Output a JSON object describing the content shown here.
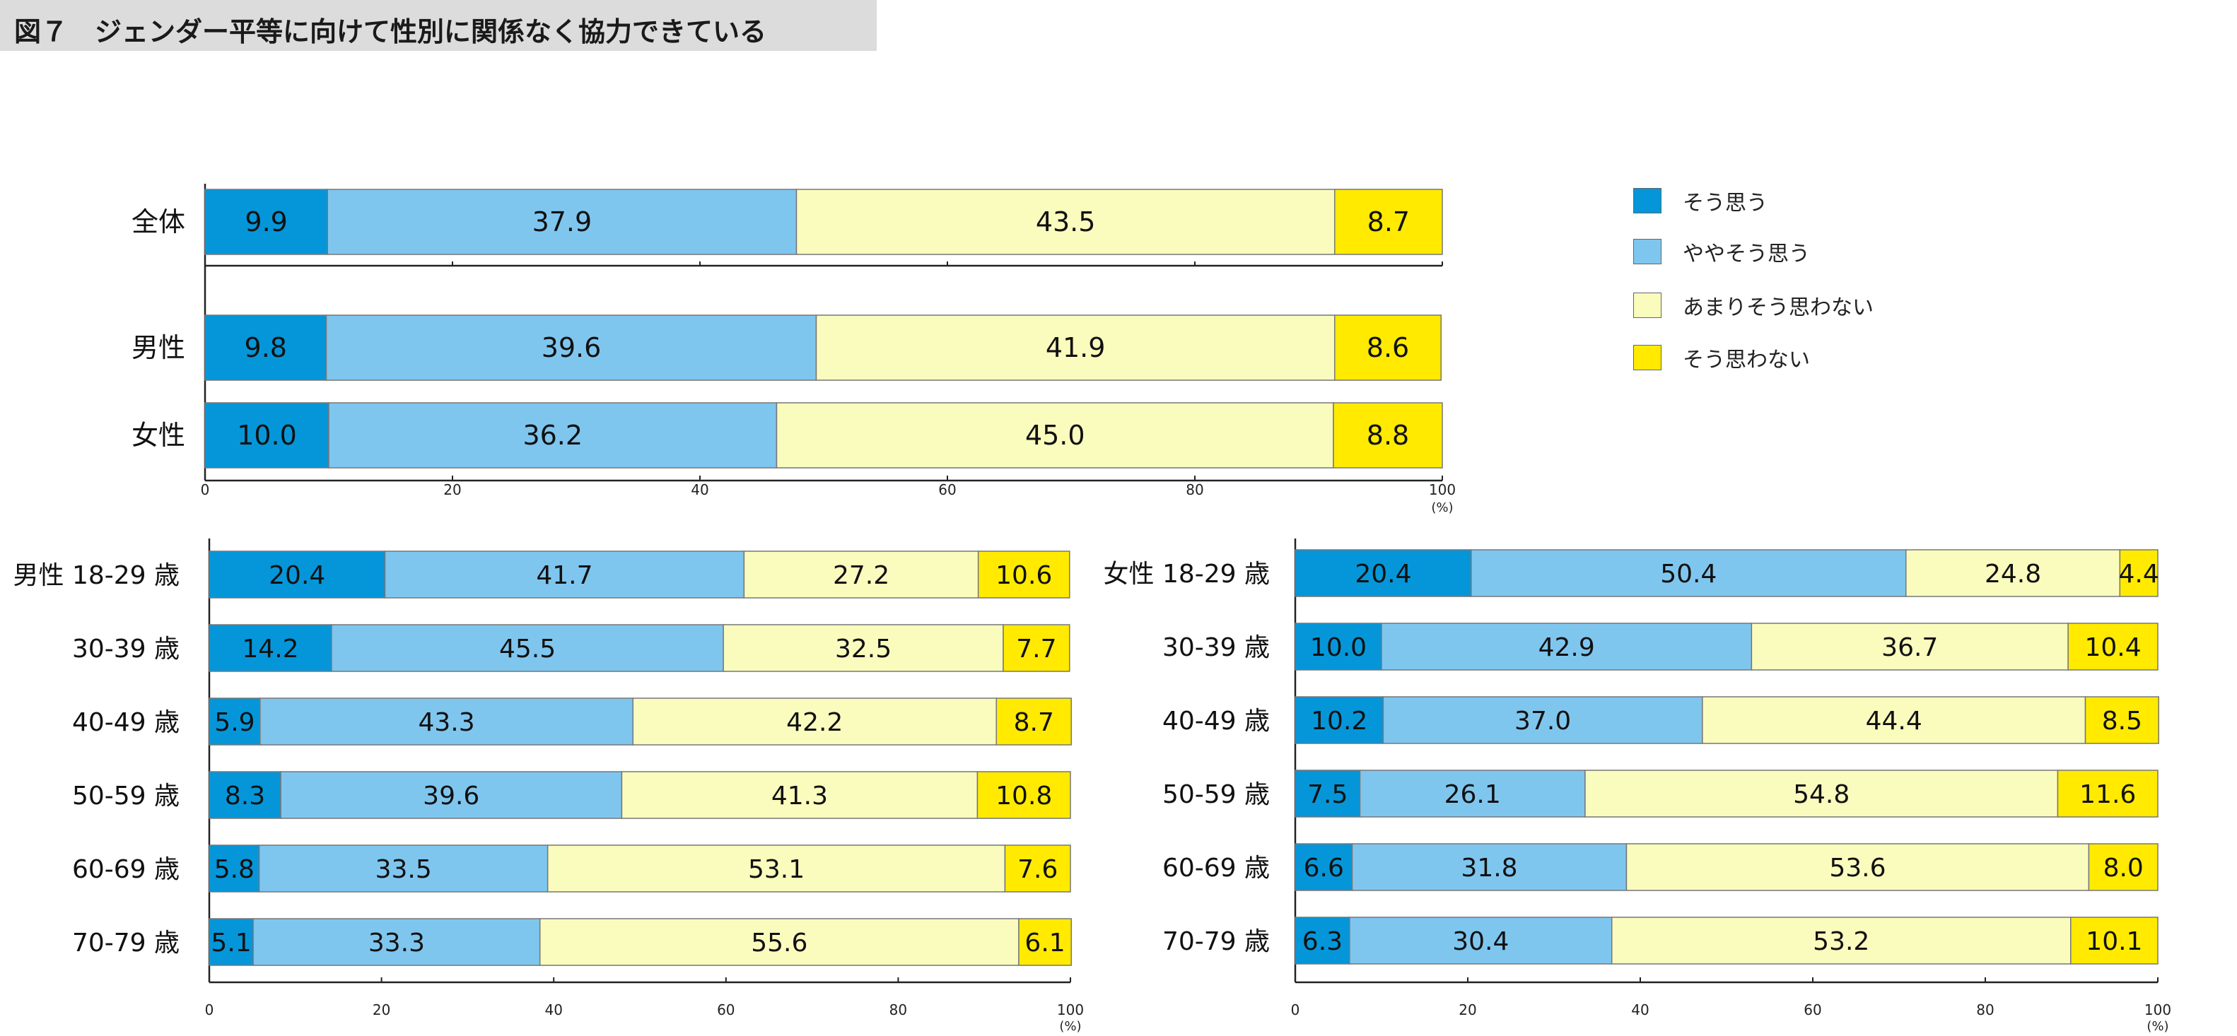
{
  "title": "図７　ジェンダー平等に向けて性別に関係なく協力できている",
  "colors": {
    "c1": "#0596d9",
    "c2": "#7fc6ef",
    "c3": "#fafcbe",
    "c4": "#ffea00"
  },
  "legend": [
    {
      "label": "そう思う",
      "color": "#0596d9"
    },
    {
      "label": "ややそう思う",
      "color": "#7fc6ef"
    },
    {
      "label": "あまりそう思わない",
      "color": "#fafcbe"
    },
    {
      "label": "そう思わない",
      "color": "#ffea00"
    }
  ],
  "chart_data": [
    {
      "type": "bar",
      "orientation": "horizontal-stacked",
      "categories": [
        "全体",
        "男性",
        "女性"
      ],
      "series": [
        {
          "name": "そう思う",
          "values": [
            9.9,
            9.8,
            10.0
          ]
        },
        {
          "name": "ややそう思う",
          "values": [
            37.9,
            39.6,
            36.2
          ]
        },
        {
          "name": "あまりそう思わない",
          "values": [
            43.5,
            41.9,
            45.0
          ]
        },
        {
          "name": "そう思わない",
          "values": [
            8.7,
            8.6,
            8.8
          ]
        }
      ],
      "xlim": [
        0,
        100
      ],
      "xticks": [
        "0",
        "20",
        "40",
        "60",
        "80",
        "100"
      ],
      "unit": "(%)"
    },
    {
      "type": "bar",
      "orientation": "horizontal-stacked",
      "categories": [
        "男性 18-29 歳",
        "30-39 歳",
        "40-49 歳",
        "50-59 歳",
        "60-69 歳",
        "70-79 歳"
      ],
      "series": [
        {
          "name": "そう思う",
          "values": [
            20.4,
            14.2,
            5.9,
            8.3,
            5.8,
            5.1
          ]
        },
        {
          "name": "ややそう思う",
          "values": [
            41.7,
            45.5,
            43.3,
            39.6,
            33.5,
            33.3
          ]
        },
        {
          "name": "あまりそう思わない",
          "values": [
            27.2,
            32.5,
            42.2,
            41.3,
            53.1,
            55.6
          ]
        },
        {
          "name": "そう思わない",
          "values": [
            10.6,
            7.7,
            8.7,
            10.8,
            7.6,
            6.1
          ]
        }
      ],
      "xlim": [
        0,
        100
      ],
      "xticks": [
        "0",
        "20",
        "40",
        "60",
        "80",
        "100"
      ],
      "unit": "(%)"
    },
    {
      "type": "bar",
      "orientation": "horizontal-stacked",
      "categories": [
        "女性 18-29 歳",
        "30-39 歳",
        "40-49 歳",
        "50-59 歳",
        "60-69 歳",
        "70-79 歳"
      ],
      "series": [
        {
          "name": "そう思う",
          "values": [
            20.4,
            10.0,
            10.2,
            7.5,
            6.6,
            6.3
          ]
        },
        {
          "name": "ややそう思う",
          "values": [
            50.4,
            42.9,
            37.0,
            26.1,
            31.8,
            30.4
          ]
        },
        {
          "name": "あまりそう思わない",
          "values": [
            24.8,
            36.7,
            44.4,
            54.8,
            53.6,
            53.2
          ]
        },
        {
          "name": "そう思わない",
          "values": [
            4.4,
            10.4,
            8.5,
            11.6,
            8.0,
            10.1
          ]
        }
      ],
      "xlim": [
        0,
        100
      ],
      "xticks": [
        "0",
        "20",
        "40",
        "60",
        "80",
        "100"
      ],
      "unit": "(%)"
    }
  ]
}
